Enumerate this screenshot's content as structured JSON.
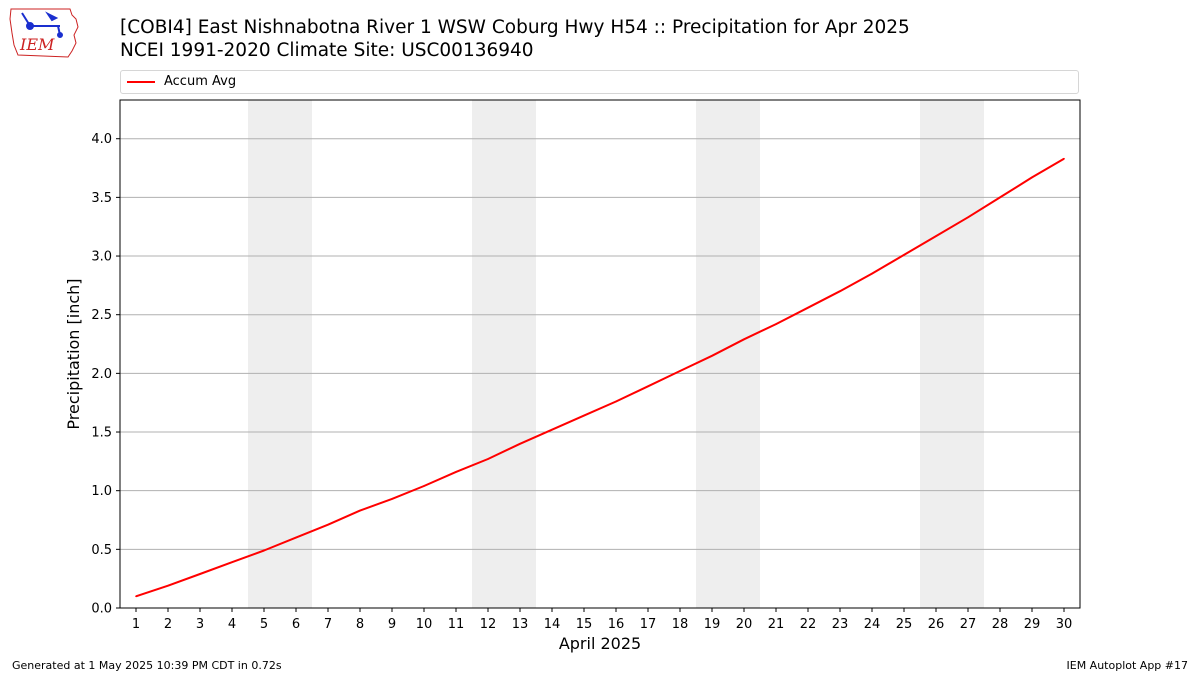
{
  "logo": {
    "text": "IEM"
  },
  "header": {
    "title": "[COBI4] East Nishnabotna River 1 WSW Coburg Hwy H54 :: Precipitation for Apr 2025",
    "subtitle": "NCEI 1991-2020 Climate Site: USC00136940"
  },
  "footer": {
    "left": "Generated at 1 May 2025 10:39 PM CDT in 0.72s",
    "right": "IEM Autoplot App #17"
  },
  "colors": {
    "line": "#ff0000",
    "weekend": "#eeeeee",
    "grid": "#b0b0b0",
    "logo": "#cc2222",
    "logo_icon": "#1a2fcf"
  },
  "chart_data": {
    "type": "line",
    "xlabel": "April 2025",
    "ylabel": "Precipitation [inch]",
    "ylim": [
      0,
      4.33
    ],
    "xlim": [
      0.5,
      30.5
    ],
    "yticks": [
      0.0,
      0.5,
      1.0,
      1.5,
      2.0,
      2.5,
      3.0,
      3.5,
      4.0
    ],
    "ytick_labels": [
      "0.0",
      "0.5",
      "1.0",
      "1.5",
      "2.0",
      "2.5",
      "3.0",
      "3.5",
      "4.0"
    ],
    "x": [
      1,
      2,
      3,
      4,
      5,
      6,
      7,
      8,
      9,
      10,
      11,
      12,
      13,
      14,
      15,
      16,
      17,
      18,
      19,
      20,
      21,
      22,
      23,
      24,
      25,
      26,
      27,
      28,
      29,
      30
    ],
    "x_labels": [
      "1",
      "2",
      "3",
      "4",
      "5",
      "6",
      "7",
      "8",
      "9",
      "10",
      "11",
      "12",
      "13",
      "14",
      "15",
      "16",
      "17",
      "18",
      "19",
      "20",
      "21",
      "22",
      "23",
      "24",
      "25",
      "26",
      "27",
      "28",
      "29",
      "30"
    ],
    "series": [
      {
        "name": "Accum Avg",
        "values": [
          0.1,
          0.19,
          0.29,
          0.39,
          0.49,
          0.6,
          0.71,
          0.83,
          0.93,
          1.04,
          1.16,
          1.27,
          1.4,
          1.52,
          1.64,
          1.76,
          1.89,
          2.02,
          2.15,
          2.29,
          2.42,
          2.56,
          2.7,
          2.85,
          3.01,
          3.17,
          3.33,
          3.5,
          3.67,
          3.83
        ]
      }
    ],
    "weekend_spans": [
      [
        4.5,
        6.5
      ],
      [
        11.5,
        13.5
      ],
      [
        18.5,
        20.5
      ],
      [
        25.5,
        27.5
      ]
    ],
    "grid": "horizontal",
    "legend_position": "top"
  }
}
